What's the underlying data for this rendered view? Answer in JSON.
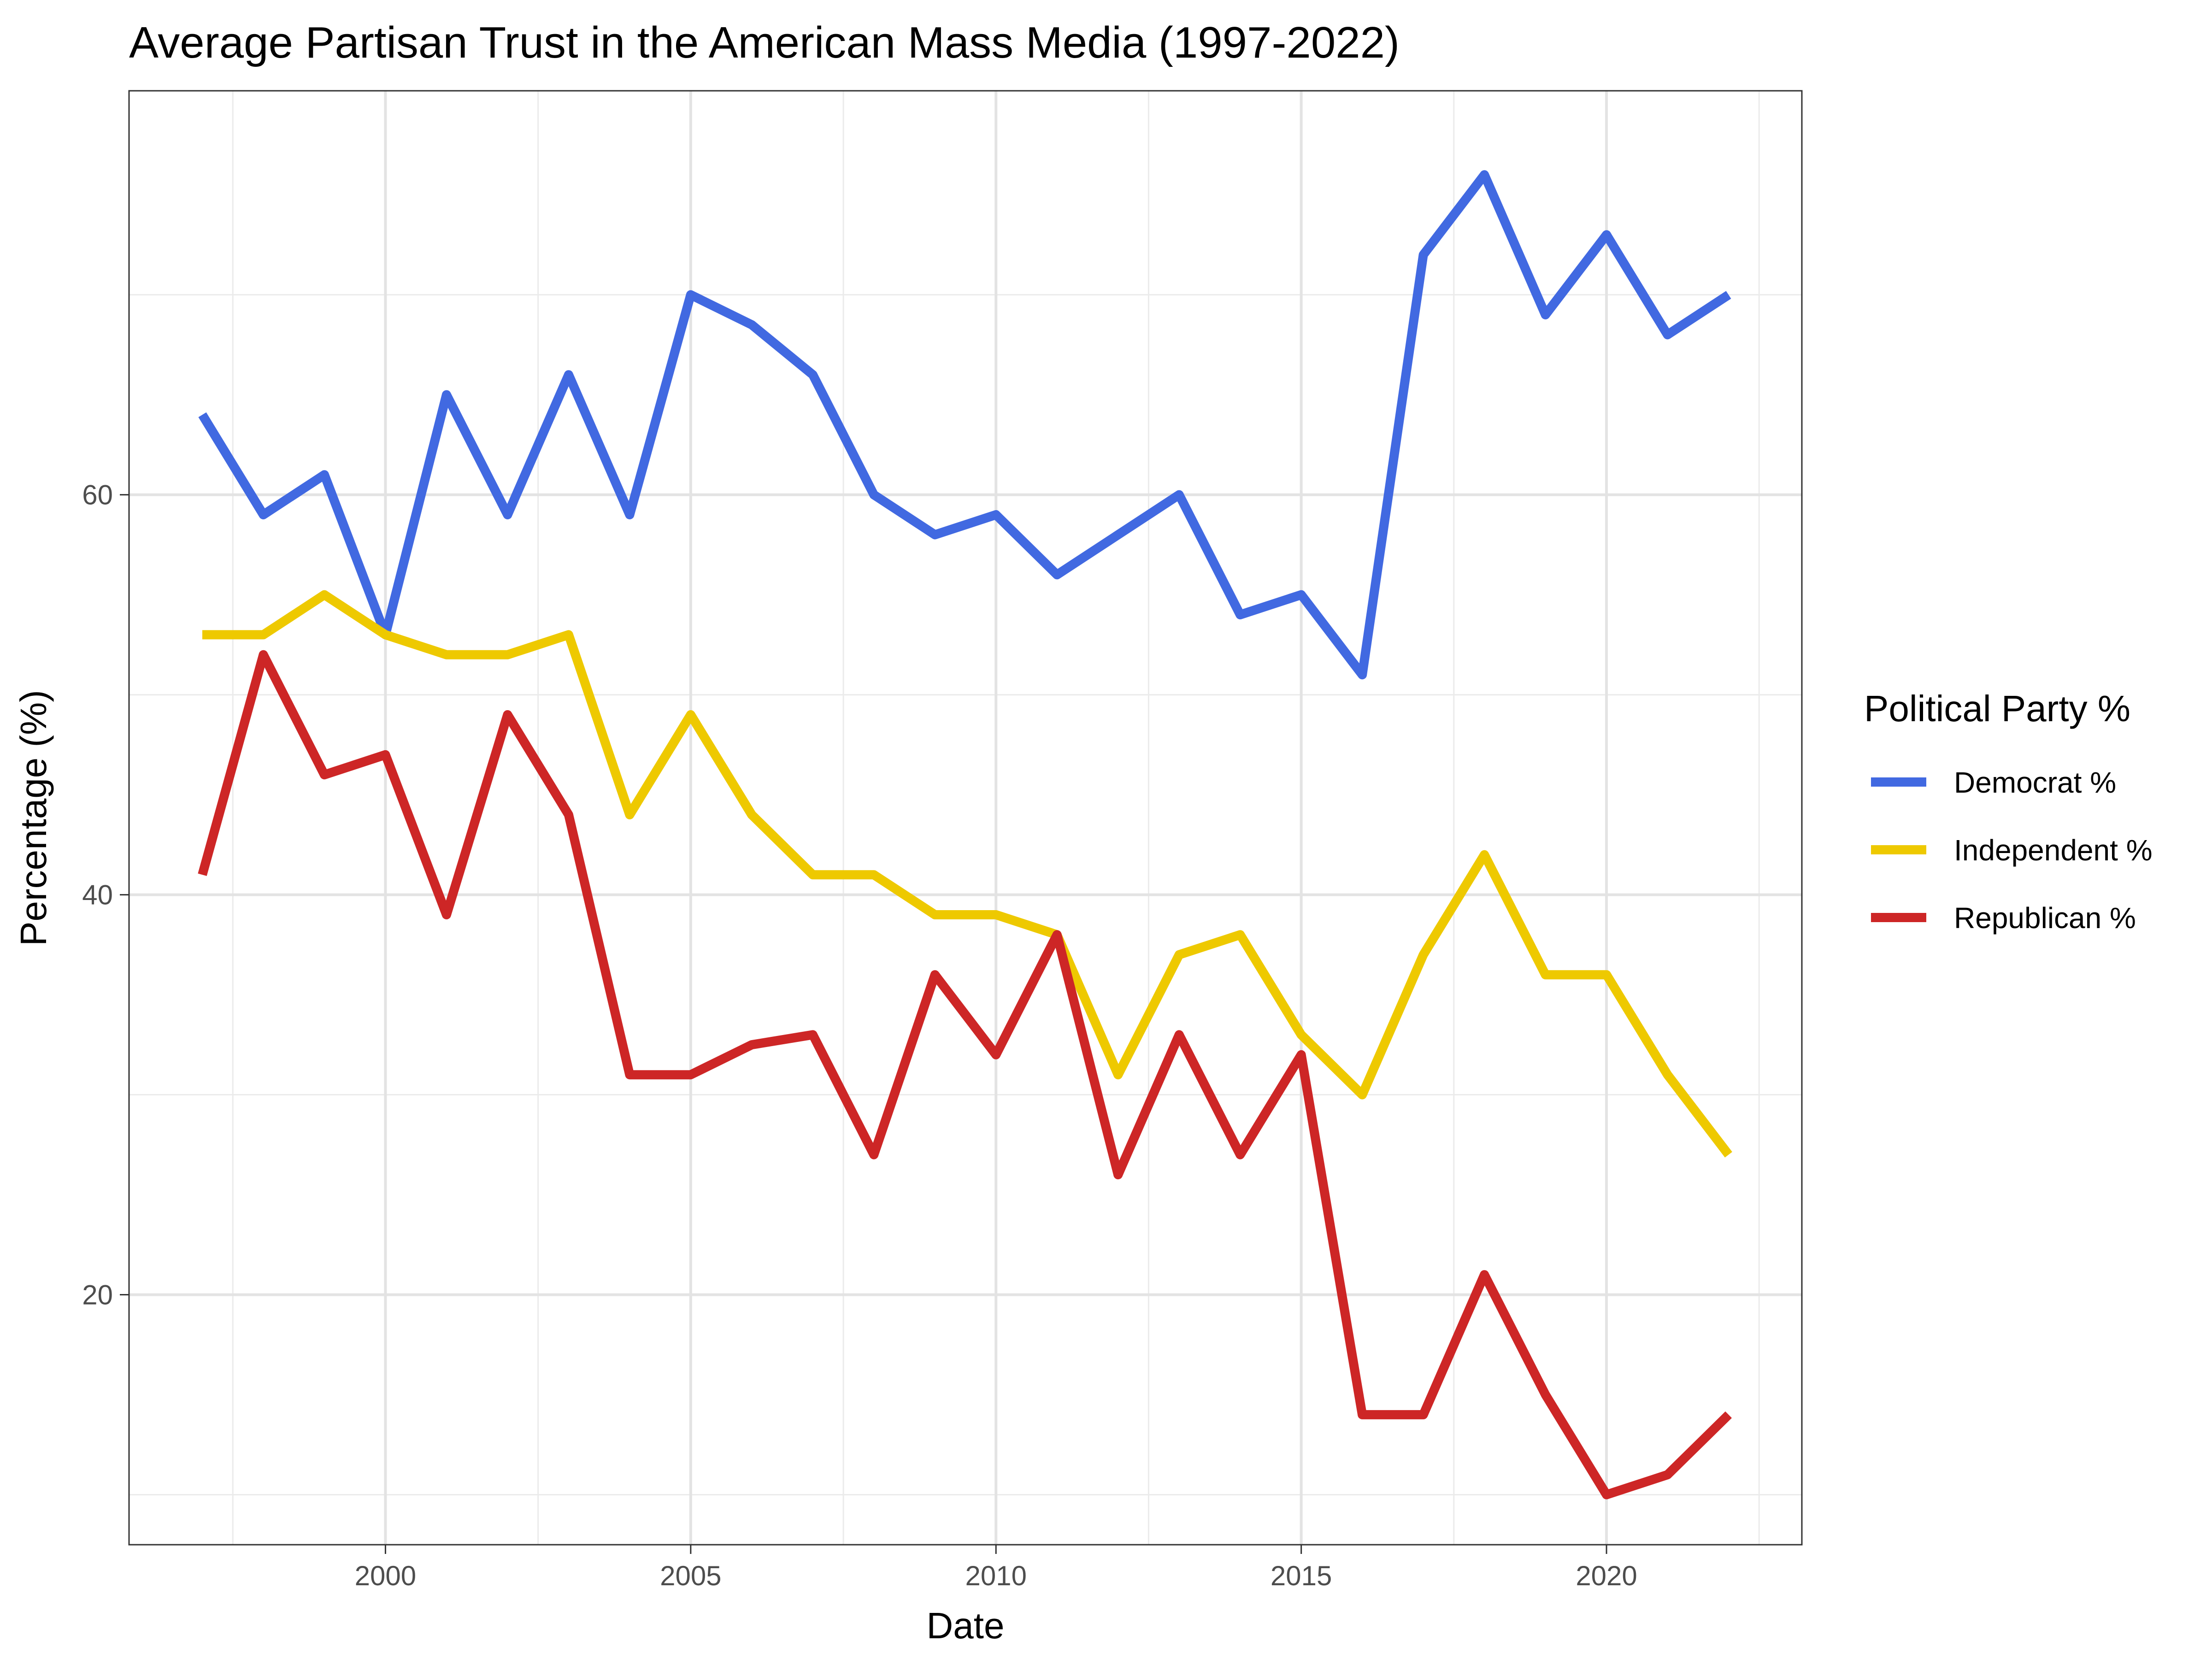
{
  "chart_data": {
    "type": "line",
    "title": "Average Partisan Trust in the American Mass Media (1997-2022)",
    "xlabel": "Date",
    "ylabel": "Percentage (%)",
    "x": [
      1997,
      1998,
      1999,
      2000,
      2001,
      2002,
      2003,
      2004,
      2005,
      2006,
      2007,
      2008,
      2009,
      2010,
      2011,
      2012,
      2013,
      2014,
      2015,
      2016,
      2017,
      2018,
      2019,
      2020,
      2021,
      2022
    ],
    "xlim": [
      1995.8,
      2023.2
    ],
    "ylim": [
      7.5,
      80.2
    ],
    "x_ticks": [
      2000,
      2005,
      2010,
      2015,
      2020
    ],
    "x_tick_labels": [
      "2000",
      "2005",
      "2010",
      "2015",
      "2020"
    ],
    "y_ticks": [
      20,
      40,
      60
    ],
    "y_tick_labels": [
      "20",
      "40",
      "60"
    ],
    "grid": true,
    "legend": {
      "title": "Political Party %",
      "position": "right"
    },
    "series": [
      {
        "name": "Democrat %",
        "color": "#4169E1",
        "values": [
          64,
          59,
          61,
          53,
          65,
          59,
          66,
          59,
          70,
          68.5,
          66,
          60,
          58,
          59,
          56,
          58,
          60,
          54,
          55,
          51,
          72,
          76,
          69,
          73,
          68,
          70
        ]
      },
      {
        "name": "Independent %",
        "color": "#EEC900",
        "values": [
          53,
          53,
          55,
          53,
          52,
          52,
          53,
          44,
          49,
          44,
          41,
          41,
          39,
          39,
          38,
          31,
          37,
          38,
          33,
          30,
          37,
          42,
          36,
          36,
          31,
          27
        ]
      },
      {
        "name": "Republican %",
        "color": "#CD2626",
        "values": [
          41,
          52,
          46,
          47,
          39,
          49,
          44,
          31,
          31,
          32.5,
          33,
          27,
          36,
          32,
          38,
          26,
          33,
          27,
          32,
          14,
          14,
          21,
          15,
          10,
          11,
          14
        ]
      }
    ]
  }
}
